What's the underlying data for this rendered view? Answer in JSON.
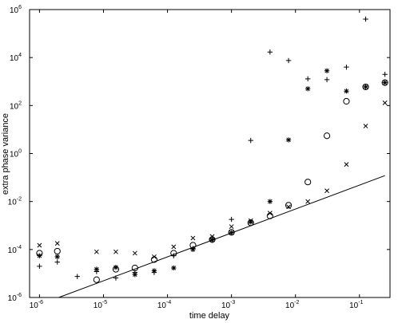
{
  "chart_data": {
    "type": "scatter",
    "title": "",
    "xlabel": "time delay",
    "ylabel": "extra phase variance",
    "x_scale": "log",
    "y_scale": "log",
    "xlim": [
      7e-07,
      0.3
    ],
    "ylim": [
      1e-06,
      1000000.0
    ],
    "grid": false,
    "legend": "none",
    "x_ticks": [
      {
        "value": 1e-06,
        "base": "10",
        "exp": "-6"
      },
      {
        "value": 1e-05,
        "base": "10",
        "exp": "-5"
      },
      {
        "value": 0.0001,
        "base": "10",
        "exp": "-4"
      },
      {
        "value": 0.001,
        "base": "10",
        "exp": "-3"
      },
      {
        "value": 0.01,
        "base": "10",
        "exp": "-2"
      },
      {
        "value": 0.1,
        "base": "10",
        "exp": "-1"
      }
    ],
    "y_ticks": [
      {
        "value": 1e-06,
        "base": "10",
        "exp": "-6"
      },
      {
        "value": 0.0001,
        "base": "10",
        "exp": "-4"
      },
      {
        "value": 0.01,
        "base": "10",
        "exp": "-2"
      },
      {
        "value": 1,
        "base": "10",
        "exp": "0"
      },
      {
        "value": 100,
        "base": "10",
        "exp": "2"
      },
      {
        "value": 10000,
        "base": "10",
        "exp": "4"
      },
      {
        "value": 1000000,
        "base": "10",
        "exp": "6"
      }
    ],
    "series": [
      {
        "marker": "plus",
        "color": "#000000",
        "points": [
          [
            1e-06,
            2e-05
          ],
          [
            1.9e-06,
            3e-05
          ],
          [
            3.9e-06,
            7.5e-06
          ],
          [
            7.8e-06,
            1.2e-05
          ],
          [
            1.56e-05,
            6.5e-06
          ],
          [
            3.1e-05,
            1.1e-05
          ],
          [
            6.2e-05,
            1.1e-05
          ],
          [
            0.000125,
            5.5e-05
          ],
          [
            0.00025,
            0.00011
          ],
          [
            0.0005,
            0.00028
          ],
          [
            0.001,
            0.0018
          ],
          [
            0.002,
            3.5
          ],
          [
            0.004,
            17000
          ],
          [
            0.0078,
            7500
          ],
          [
            0.0156,
            1300
          ],
          [
            0.031,
            1200
          ],
          [
            0.0625,
            4000
          ],
          [
            0.125,
            400000
          ],
          [
            0.25,
            2000
          ]
        ]
      },
      {
        "marker": "x",
        "color": "#000000",
        "points": [
          [
            1e-06,
            0.00015
          ],
          [
            1.9e-06,
            0.00018
          ],
          [
            7.8e-06,
            8e-05
          ],
          [
            1.56e-05,
            8e-05
          ],
          [
            3.1e-05,
            7e-05
          ],
          [
            6.2e-05,
            5e-05
          ],
          [
            0.000125,
            0.00013
          ],
          [
            0.00025,
            0.0003
          ],
          [
            0.0005,
            0.00035
          ],
          [
            0.001,
            0.0009
          ],
          [
            0.002,
            0.0016
          ],
          [
            0.004,
            0.0033
          ],
          [
            0.0078,
            0.006
          ],
          [
            0.0156,
            0.01
          ],
          [
            0.031,
            0.028
          ],
          [
            0.0625,
            0.35
          ],
          [
            0.125,
            14
          ],
          [
            0.25,
            130
          ]
        ]
      },
      {
        "marker": "star",
        "color": "#000000",
        "points": [
          [
            1e-06,
            5.5e-05
          ],
          [
            1.9e-06,
            5e-05
          ],
          [
            7.8e-06,
            1.5e-05
          ],
          [
            1.56e-05,
            1.8e-05
          ],
          [
            3.1e-05,
            9e-06
          ],
          [
            6.2e-05,
            1.3e-05
          ],
          [
            0.000125,
            1.7e-05
          ],
          [
            0.00025,
            0.0001
          ],
          [
            0.0005,
            0.00025
          ],
          [
            0.001,
            0.0005
          ],
          [
            0.002,
            0.0014
          ],
          [
            0.004,
            0.01
          ],
          [
            0.0078,
            3.7
          ],
          [
            0.0156,
            500
          ],
          [
            0.031,
            2800
          ],
          [
            0.0625,
            400
          ],
          [
            0.125,
            600
          ],
          [
            0.25,
            900
          ]
        ]
      },
      {
        "marker": "circle",
        "color": "#000000",
        "points": [
          [
            1e-06,
            7e-05
          ],
          [
            1.9e-06,
            8.5e-05
          ],
          [
            7.8e-06,
            5.5e-06
          ],
          [
            1.56e-05,
            1.5e-05
          ],
          [
            3.1e-05,
            1.7e-05
          ],
          [
            6.2e-05,
            3.8e-05
          ],
          [
            0.000125,
            7e-05
          ],
          [
            0.00025,
            0.00015
          ],
          [
            0.0005,
            0.00026
          ],
          [
            0.001,
            0.00052
          ],
          [
            0.002,
            0.0013
          ],
          [
            0.004,
            0.0025
          ],
          [
            0.0078,
            0.007
          ],
          [
            0.0156,
            0.065
          ],
          [
            0.031,
            5.5
          ],
          [
            0.0625,
            150
          ],
          [
            0.125,
            600
          ],
          [
            0.25,
            900
          ]
        ]
      },
      {
        "marker": "line",
        "color": "#000000",
        "points": [
          [
            2e-06,
            1e-06
          ],
          [
            0.25,
            0.12
          ]
        ]
      }
    ]
  }
}
